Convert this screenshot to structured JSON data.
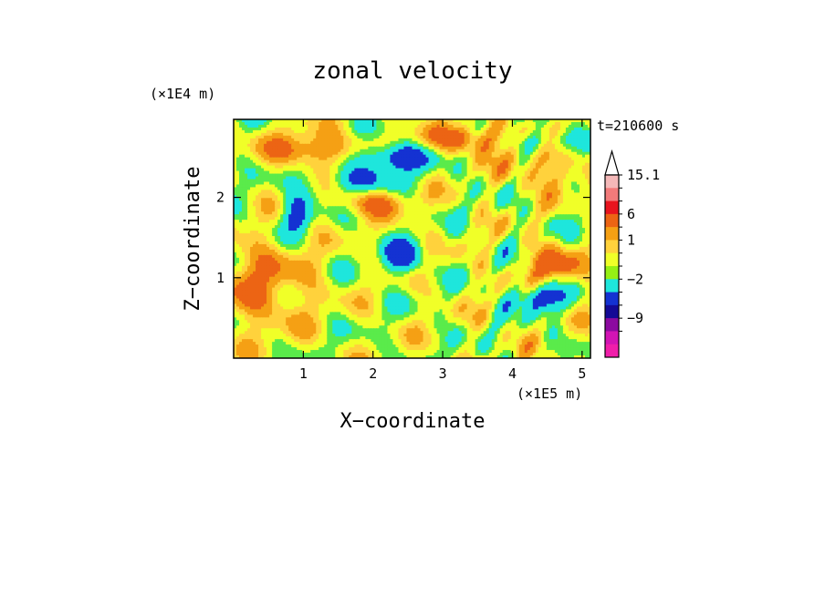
{
  "chart_data": {
    "type": "heatmap",
    "title": "zonal velocity",
    "xlabel": "X−coordinate",
    "ylabel": "Z−coordinate",
    "x_unit": "(×1E5 m)",
    "y_unit": "(×1E4 m)",
    "time_label": "t=210600 s",
    "xlim": [
      0,
      5.12
    ],
    "ylim": [
      0,
      2.97
    ],
    "x_ticks": [
      "1",
      "2",
      "3",
      "4",
      "5"
    ],
    "x_tick_values": [
      1,
      2,
      3,
      4,
      5
    ],
    "y_ticks": [
      "1",
      "2"
    ],
    "y_tick_values": [
      1,
      2
    ],
    "grid": false,
    "colorbar": {
      "placement": "right",
      "labels": [
        "15.1",
        "6",
        "1",
        "−2",
        "−9"
      ],
      "label_values": [
        15.1,
        6,
        1,
        -2,
        -9
      ],
      "levels_top_to_bottom": [
        15.1,
        12,
        9,
        6,
        3,
        1,
        0,
        -1,
        -2,
        -4,
        -6,
        -9,
        -12
      ],
      "colors_top_to_bottom": [
        "#ffffff",
        "#f4b8b8",
        "#f27a7a",
        "#e8141e",
        "#ec6414",
        "#f5a014",
        "#ffd23c",
        "#f0ff28",
        "#96f014",
        "#1ee6dc",
        "#1432d2",
        "#140a96",
        "#8c0aa0",
        "#d214b4",
        "#f01eaa"
      ]
    },
    "field_colors": {
      "very_neg": "#1432d2",
      "neg": "#1ee6dc",
      "weak_neg": "#5aeb4b",
      "near_zero": "#f0ff28",
      "weak_pos": "#ffd23c",
      "pos": "#f5a014",
      "strong_pos": "#ec6414"
    }
  }
}
